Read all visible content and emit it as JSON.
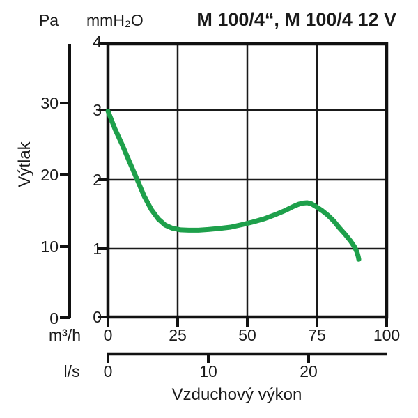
{
  "title": "M 100/4“, M 100/4 12 V",
  "labels": {
    "pa_unit": "Pa",
    "mmh2o_unit": "mmH₂O",
    "m3h_unit": "m³/h",
    "ls_unit": "l/s",
    "ylabel": "Výtlak",
    "xlabel": "Vzduchový výkon"
  },
  "ticks": {
    "mmh2o": [
      "4",
      "3",
      "2",
      "1",
      "0"
    ],
    "pa": [
      "30",
      "20",
      "10",
      "0"
    ],
    "m3h": [
      "0",
      "25",
      "50",
      "75",
      "100"
    ],
    "ls": [
      "0",
      "10",
      "20"
    ]
  },
  "colors": {
    "curve": "#1EA04B",
    "axis": "#111111"
  },
  "chart_data": {
    "type": "line",
    "title": "M 100/4“, M 100/4 12 V",
    "xlabel": "Vzduchový výkon",
    "ylabel": "Výtlak",
    "x_units": [
      "m³/h",
      "l/s"
    ],
    "y_units": [
      "Pa",
      "mmH₂O"
    ],
    "x_axis_m3h": {
      "range": [
        0,
        100
      ],
      "ticks": [
        0,
        25,
        50,
        75,
        100
      ]
    },
    "x_axis_ls": {
      "ticks": [
        0,
        10,
        20
      ]
    },
    "y_axis_mmh2o": {
      "range": [
        0,
        4
      ],
      "ticks": [
        0,
        1,
        2,
        3,
        4
      ]
    },
    "y_axis_pa": {
      "ticks": [
        0,
        10,
        20,
        30
      ]
    },
    "grid": true,
    "legend": "none",
    "series": [
      {
        "name": "M 100/4“, M 100/4 12 V",
        "color": "#1EA04B",
        "x_unit": "m³/h",
        "y_unit": "mmH₂O",
        "points": [
          [
            0,
            3.0
          ],
          [
            2.5,
            2.74
          ],
          [
            5,
            2.52
          ],
          [
            7.5,
            2.28
          ],
          [
            10.5,
            2.0
          ],
          [
            13,
            1.76
          ],
          [
            15.5,
            1.57
          ],
          [
            18,
            1.43
          ],
          [
            20.5,
            1.34
          ],
          [
            23,
            1.295
          ],
          [
            26,
            1.27
          ],
          [
            29,
            1.265
          ],
          [
            32.5,
            1.265
          ],
          [
            36,
            1.275
          ],
          [
            40,
            1.29
          ],
          [
            44,
            1.31
          ],
          [
            48,
            1.345
          ],
          [
            52,
            1.385
          ],
          [
            56,
            1.43
          ],
          [
            60,
            1.49
          ],
          [
            63.5,
            1.55
          ],
          [
            66.5,
            1.61
          ],
          [
            68.5,
            1.645
          ],
          [
            70,
            1.66
          ],
          [
            71.5,
            1.665
          ],
          [
            73,
            1.65
          ],
          [
            75,
            1.6
          ],
          [
            77,
            1.545
          ],
          [
            79,
            1.48
          ],
          [
            81,
            1.4
          ],
          [
            83,
            1.3
          ],
          [
            85,
            1.21
          ],
          [
            87,
            1.11
          ],
          [
            88.5,
            1.02
          ],
          [
            89.4,
            0.94
          ],
          [
            89.8,
            0.88
          ],
          [
            90,
            0.84
          ]
        ]
      }
    ]
  }
}
